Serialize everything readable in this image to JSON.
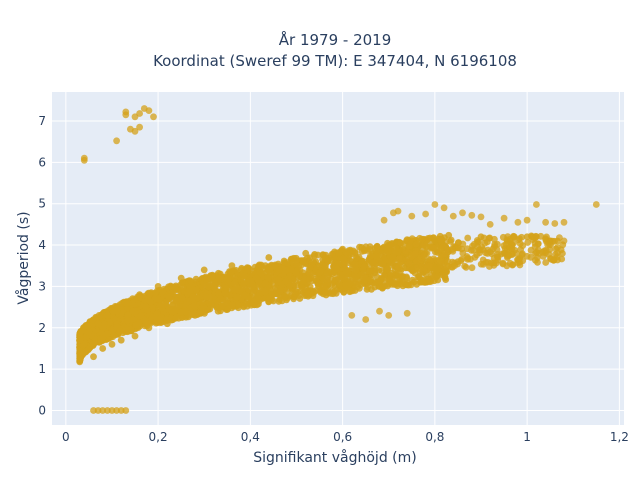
{
  "chart_data": {
    "type": "scatter",
    "title_line1": "År 1979 - 2019",
    "title_line2": "Koordinat (Sweref 99 TM): E 347404, N 6196108",
    "xlabel": "Signifikant våghöjd (m)",
    "ylabel": "Vågperiod (s)",
    "xlim": [
      -0.03,
      1.21
    ],
    "ylim": [
      -0.35,
      7.7
    ],
    "xticks": [
      0,
      0.2,
      0.4,
      0.6,
      0.8,
      1,
      1.2
    ],
    "xtick_labels": [
      "0",
      "0,2",
      "0,4",
      "0,6",
      "0,8",
      "1",
      "1,2"
    ],
    "yticks": [
      0,
      1,
      2,
      3,
      4,
      5,
      6,
      7
    ],
    "ytick_labels": [
      "0",
      "1",
      "2",
      "3",
      "4",
      "5",
      "6",
      "7"
    ],
    "grid": true,
    "colors": {
      "marker": "#d4a21a",
      "plot_bg": "#e5ecf6",
      "grid": "#ffffff",
      "text": "#2a3f5f"
    },
    "bulk_points": [
      [
        0.03,
        1.2
      ],
      [
        0.03,
        1.7
      ],
      [
        0.04,
        1.4
      ],
      [
        0.05,
        1.9
      ],
      [
        0.06,
        1.3
      ],
      [
        0.07,
        2.1
      ],
      [
        0.08,
        1.5
      ],
      [
        0.09,
        2.3
      ],
      [
        0.1,
        1.6
      ],
      [
        0.11,
        2.5
      ],
      [
        0.12,
        1.7
      ],
      [
        0.13,
        2.6
      ],
      [
        0.15,
        1.8
      ],
      [
        0.16,
        2.8
      ],
      [
        0.18,
        2.0
      ],
      [
        0.2,
        3.0
      ],
      [
        0.22,
        2.1
      ],
      [
        0.25,
        3.2
      ],
      [
        0.28,
        2.3
      ],
      [
        0.3,
        3.4
      ],
      [
        0.33,
        2.4
      ],
      [
        0.36,
        3.5
      ],
      [
        0.4,
        2.6
      ],
      [
        0.44,
        3.7
      ],
      [
        0.48,
        2.8
      ],
      [
        0.52,
        3.8
      ],
      [
        0.56,
        3.0
      ],
      [
        0.6,
        3.9
      ],
      [
        0.65,
        3.2
      ],
      [
        0.7,
        4.0
      ],
      [
        0.75,
        3.4
      ],
      [
        0.8,
        4.1
      ],
      [
        0.85,
        3.6
      ],
      [
        0.9,
        4.2
      ],
      [
        0.95,
        3.8
      ],
      [
        1.0,
        4.2
      ],
      [
        1.05,
        4.1
      ]
    ],
    "outlier_points": [
      [
        0.04,
        6.05
      ],
      [
        0.04,
        6.1
      ],
      [
        0.11,
        6.52
      ],
      [
        0.13,
        7.15
      ],
      [
        0.13,
        7.22
      ],
      [
        0.14,
        6.8
      ],
      [
        0.15,
        6.75
      ],
      [
        0.15,
        7.1
      ],
      [
        0.16,
        7.18
      ],
      [
        0.16,
        6.85
      ],
      [
        0.17,
        7.3
      ],
      [
        0.18,
        7.25
      ],
      [
        0.19,
        7.1
      ],
      [
        0.06,
        0.0
      ],
      [
        0.07,
        0.0
      ],
      [
        0.08,
        0.0
      ],
      [
        0.09,
        0.0
      ],
      [
        0.1,
        0.0
      ],
      [
        0.11,
        0.0
      ],
      [
        0.12,
        0.0
      ],
      [
        0.13,
        0.0
      ],
      [
        0.69,
        4.6
      ],
      [
        0.71,
        4.78
      ],
      [
        0.72,
        4.82
      ],
      [
        0.75,
        4.7
      ],
      [
        0.78,
        4.75
      ],
      [
        0.8,
        4.98
      ],
      [
        0.82,
        4.9
      ],
      [
        0.84,
        4.7
      ],
      [
        0.86,
        4.78
      ],
      [
        0.88,
        4.72
      ],
      [
        0.9,
        4.68
      ],
      [
        0.92,
        4.5
      ],
      [
        0.95,
        4.65
      ],
      [
        0.98,
        4.55
      ],
      [
        1.0,
        4.6
      ],
      [
        1.02,
        4.98
      ],
      [
        1.04,
        4.55
      ],
      [
        1.06,
        4.52
      ],
      [
        1.08,
        4.55
      ],
      [
        1.15,
        4.98
      ],
      [
        0.62,
        2.3
      ],
      [
        0.65,
        2.2
      ],
      [
        0.68,
        2.4
      ],
      [
        0.7,
        2.3
      ],
      [
        0.74,
        2.35
      ],
      [
        1.02,
        4.2
      ],
      [
        1.05,
        4.1
      ],
      [
        1.07,
        4.18
      ],
      [
        1.08,
        4.1
      ]
    ]
  }
}
